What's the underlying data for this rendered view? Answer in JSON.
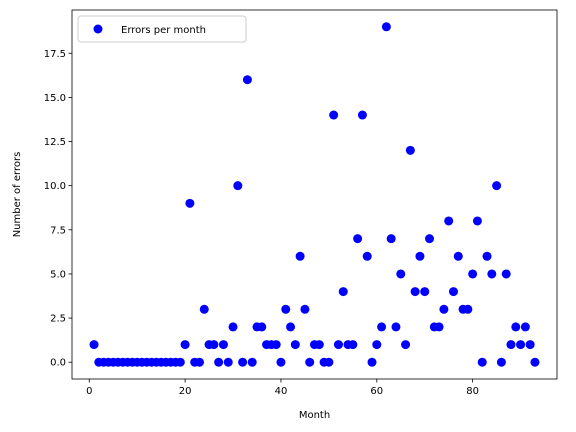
{
  "chart_data": {
    "type": "scatter",
    "xlabel": "Month",
    "ylabel": "Number of errors",
    "xlim": [
      -3.6,
      97.6
    ],
    "ylim": [
      -0.95,
      19.95
    ],
    "xticks": [
      0,
      20,
      40,
      60,
      80
    ],
    "xtick_labels": [
      "0",
      "20",
      "40",
      "60",
      "80"
    ],
    "yticks": [
      0,
      2.5,
      5,
      7.5,
      10,
      12.5,
      15,
      17.5
    ],
    "ytick_labels": [
      "0.0",
      "2.5",
      "5.0",
      "7.5",
      "10.0",
      "12.5",
      "15.0",
      "17.5"
    ],
    "grid": false,
    "legend_position": "top-left",
    "series": [
      {
        "name": "Errors per month",
        "color": "#0000ff",
        "marker": "circle",
        "x": [
          1,
          2,
          3,
          4,
          5,
          6,
          7,
          8,
          9,
          10,
          11,
          12,
          13,
          14,
          15,
          16,
          17,
          18,
          19,
          20,
          21,
          22,
          23,
          24,
          25,
          26,
          27,
          28,
          29,
          30,
          31,
          32,
          33,
          34,
          35,
          36,
          37,
          38,
          39,
          40,
          41,
          42,
          43,
          44,
          45,
          46,
          47,
          48,
          49,
          50,
          51,
          52,
          53,
          54,
          55,
          56,
          57,
          58,
          59,
          60,
          61,
          62,
          63,
          64,
          65,
          66,
          67,
          68,
          69,
          70,
          71,
          72,
          73,
          74,
          75,
          76,
          77,
          78,
          79,
          80,
          81,
          82,
          83,
          84,
          85,
          86,
          87,
          88,
          89,
          90,
          91,
          92,
          93
        ],
        "y": [
          1,
          0,
          0,
          0,
          0,
          0,
          0,
          0,
          0,
          0,
          0,
          0,
          0,
          0,
          0,
          0,
          0,
          0,
          0,
          1,
          9,
          0,
          0,
          3,
          1,
          1,
          0,
          1,
          0,
          2,
          10,
          0,
          16,
          0,
          2,
          2,
          1,
          1,
          1,
          0,
          3,
          2,
          1,
          6,
          3,
          0,
          1,
          1,
          0,
          0,
          14,
          1,
          4,
          1,
          1,
          7,
          14,
          6,
          0,
          1,
          2,
          19,
          7,
          2,
          5,
          1,
          12,
          4,
          6,
          4,
          7,
          2,
          2,
          3,
          8,
          4,
          6,
          3,
          3,
          5,
          8,
          0,
          6,
          5,
          10,
          0,
          5,
          1,
          2,
          1,
          2,
          1,
          0
        ]
      }
    ]
  }
}
